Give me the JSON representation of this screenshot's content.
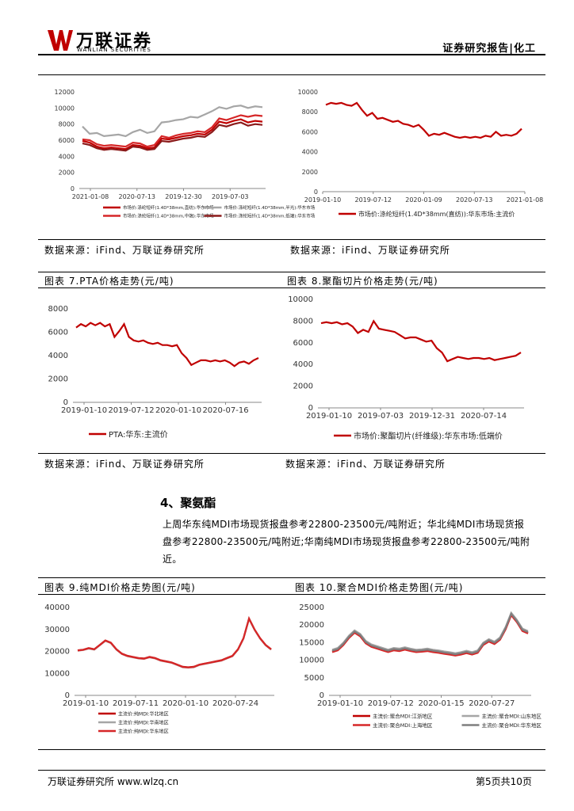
{
  "header": {
    "brand_cn": "万联证券",
    "brand_en": "WANLIAN SECURITIES",
    "report_type": "证券研究报告|化工"
  },
  "source_note": "数据来源：iFind、万联证券研究所",
  "charts": [
    {
      "id": "c5",
      "title": "",
      "chart_data": {
        "type": "line",
        "x_ticks": [
          "2021-01-08",
          "2020-07-13",
          "2019-12-30",
          "2019-07-03"
        ],
        "y_ticks": [
          0,
          2000,
          4000,
          6000,
          8000,
          10000,
          12000
        ],
        "ylim": [
          0,
          12000
        ],
        "series": [
          {
            "name": "市场价(主流价):涤纶短纤(1.4D*38mm,直纺)",
            "color": "#c00000",
            "values": [
              5900,
              5700,
              5200,
              5000,
              5100,
              5000,
              4900,
              5400,
              5300,
              5000,
              5100,
              6200,
              6100,
              6300,
              6500,
              6600,
              6800,
              6700,
              7300,
              8300,
              8100,
              8400,
              8600,
              8200,
              8400,
              8300
            ]
          },
          {
            "name": "市场价(主流价):涤纶短纤(1.4D*38mm,半光)",
            "color": "#a6a6a6",
            "values": [
              7700,
              6800,
              6900,
              6500,
              6600,
              6700,
              6500,
              7000,
              7300,
              6900,
              7100,
              8200,
              8300,
              8500,
              8600,
              8900,
              8800,
              9200,
              9600,
              10100,
              9900,
              10200,
              10300,
              10000,
              10200,
              10100
            ]
          },
          {
            "name": "市场价(主流价):涤纶短纤(1.4D*38mm,中端)",
            "color": "#d62728",
            "values": [
              6100,
              6000,
              5500,
              5300,
              5400,
              5300,
              5200,
              5700,
              5600,
              5200,
              5400,
              6500,
              6300,
              6600,
              6800,
              6900,
              7100,
              7000,
              7600,
              8700,
              8500,
              8800,
              9100,
              8900,
              9100,
              9000
            ]
          },
          {
            "name": "市场价(主流价):涤纶短纤(1.4D*38mm,低端)",
            "color": "#8b1a1a",
            "values": [
              5600,
              5400,
              5000,
              4800,
              4900,
              4800,
              4700,
              5200,
              5100,
              4800,
              4900,
              5900,
              5800,
              6000,
              6200,
              6300,
              6500,
              6400,
              7000,
              7900,
              7700,
              8000,
              8200,
              7800,
              8000,
              7900
            ]
          }
        ]
      },
      "legend": [
        "市场价:涤纶短纤(1.4D*38mm,直纺):华东市场",
        "市场价:涤纶短纤(1.4D*38mm,半光):华东市场",
        "市场价:涤纶短纤(1.4D*38mm,中端):华东市场",
        "市场价:涤纶短纤(1.4D*38mm,低端):华东市场"
      ]
    },
    {
      "id": "c6",
      "title": "",
      "chart_data": {
        "type": "line",
        "x_ticks": [
          "2019-01-10",
          "2019-07-12",
          "2020-01-09",
          "2020-07-13",
          "2021-01-08"
        ],
        "y_ticks": [
          0,
          2000,
          4000,
          6000,
          8000,
          10000
        ],
        "ylim": [
          0,
          10000
        ],
        "series": [
          {
            "name": "市场价:涤纶短纤(1.4D*38mm(直纺)):华东市场:主流价",
            "color": "#c00000",
            "values": [
              8700,
              8900,
              8800,
              8900,
              8700,
              8600,
              8900,
              8200,
              7600,
              7900,
              7300,
              7400,
              7200,
              7000,
              7100,
              6800,
              6700,
              6500,
              6700,
              6200,
              5600,
              5800,
              5700,
              5900,
              5700,
              5500,
              5400,
              5500,
              5400,
              5500,
              5400,
              5600,
              5500,
              6000,
              5600,
              5700,
              5600,
              5800,
              6300
            ]
          }
        ]
      },
      "legend": [
        "市场价:涤纶短纤(1.4D*38mm(直纺)):华东市场:主流价"
      ]
    },
    {
      "id": "c7",
      "title": "图表 7.PTA价格走势(元/吨)",
      "chart_data": {
        "type": "line",
        "x_ticks": [
          "2019-01-10",
          "2019-07-12",
          "2020-01-10",
          "2020-07-16"
        ],
        "y_ticks": [
          0,
          2000,
          4000,
          6000,
          8000
        ],
        "ylim": [
          0,
          8000
        ],
        "series": [
          {
            "name": "PTA:华东:主流价",
            "color": "#c00000",
            "values": [
              6400,
              6700,
              6500,
              6800,
              6600,
              6800,
              6500,
              6700,
              5600,
              6100,
              6700,
              5600,
              5300,
              5200,
              5300,
              5100,
              5000,
              5100,
              4900,
              4900,
              4800,
              4900,
              4200,
              3800,
              3200,
              3400,
              3600,
              3600,
              3500,
              3600,
              3500,
              3600,
              3400,
              3100,
              3400,
              3500,
              3300,
              3600,
              3800
            ]
          }
        ]
      },
      "legend": [
        "PTA:华东:主流价"
      ]
    },
    {
      "id": "c8",
      "title": "图表 8.聚酯切片价格走势(元/吨)",
      "chart_data": {
        "type": "line",
        "x_ticks": [
          "2019-01-10",
          "2019-07-03",
          "2019-12-31",
          "2020-07-14"
        ],
        "y_ticks": [
          0,
          2000,
          4000,
          6000,
          8000,
          10000
        ],
        "ylim": [
          0,
          10000
        ],
        "series": [
          {
            "name": "市场价:聚酯切片(纤维级):华东市场:低端价",
            "color": "#c00000",
            "values": [
              7800,
              7900,
              7800,
              7900,
              7700,
              7800,
              7500,
              6900,
              7200,
              7000,
              8000,
              7300,
              7200,
              7100,
              7000,
              6700,
              6400,
              6500,
              6500,
              6300,
              6100,
              6200,
              5500,
              5100,
              4300,
              4500,
              4700,
              4600,
              4500,
              4600,
              4600,
              4500,
              4600,
              4400,
              4500,
              4600,
              4700,
              4800,
              5100
            ]
          }
        ]
      },
      "legend": [
        "市场价:聚酯切片(纤维级):华东市场:低端价"
      ]
    },
    {
      "id": "c9",
      "title": "图表 9.纯MDI价格走势图(元/吨)",
      "chart_data": {
        "type": "line",
        "x_ticks": [
          "2019-01-10",
          "2019-07-11",
          "2020-01-10",
          "2020-07-24"
        ],
        "y_ticks": [
          0,
          10000,
          20000,
          30000,
          40000
        ],
        "ylim": [
          0,
          40000
        ],
        "series": [
          {
            "name": "主流价:纯MDI:华北地区",
            "color": "#c00000",
            "values": [
              20500,
              20800,
              21500,
              21000,
              23000,
              25000,
              24000,
              21000,
              19000,
              18000,
              17500,
              17000,
              16800,
              17500,
              17000,
              16000,
              15500,
              15000,
              14000,
              13000,
              12800,
              13000,
              14000,
              14500,
              15000,
              15500,
              16000,
              17000,
              18000,
              21000,
              26000,
              35000,
              30000,
              26000,
              23000,
              21000
            ]
          },
          {
            "name": "主流价:纯MDI:华南地区",
            "color": "#a6a6a6",
            "values": [
              20300,
              20600,
              21300,
              20800,
              22800,
              24800,
              23800,
              20800,
              18800,
              17800,
              17300,
              16800,
              16600,
              17300,
              16800,
              15800,
              15300,
              14800,
              13800,
              12800,
              12600,
              12800,
              13800,
              14300,
              14800,
              15300,
              15800,
              16800,
              17800,
              20800,
              25800,
              34800,
              29800,
              25800,
              22800,
              20800
            ]
          },
          {
            "name": "主流价:纯MDI:华东地区",
            "color": "#d62728",
            "values": [
              20400,
              20700,
              21400,
              20900,
              22900,
              24900,
              23900,
              20900,
              18900,
              17900,
              17400,
              16900,
              16700,
              17400,
              16900,
              15900,
              15400,
              14900,
              13900,
              12900,
              12700,
              12900,
              13900,
              14400,
              14900,
              15400,
              15900,
              16900,
              17900,
              20900,
              25900,
              34900,
              29900,
              25900,
              22900,
              20900
            ]
          }
        ]
      },
      "legend": [
        "主流价:纯MDI:华北地区",
        "主流价:纯MDI:华南地区",
        "主流价:纯MDI:华东地区"
      ]
    },
    {
      "id": "c10",
      "title": "图表 10.聚合MDI价格走势图(元/吨)",
      "chart_data": {
        "type": "line",
        "x_ticks": [
          "2019-01-10",
          "2019-07-12",
          "2020-01-15",
          "2020-07-27"
        ],
        "y_ticks": [
          0,
          5000,
          10000,
          15000,
          20000,
          25000
        ],
        "ylim": [
          0,
          25000
        ],
        "series": [
          {
            "name": "主流价:聚合MDI:江浙地区",
            "color": "#c00000",
            "values": [
              12500,
              13000,
              14500,
              16500,
              18000,
              17000,
              15000,
              14000,
              13500,
              13000,
              12500,
              13000,
              12800,
              13200,
              12800,
              12500,
              12600,
              12800,
              12500,
              12300,
              12000,
              11800,
              11500,
              11800,
              12200,
              11800,
              12300,
              14500,
              15500,
              14800,
              16000,
              19000,
              23000,
              21000,
              18500,
              17800
            ]
          },
          {
            "name": "主流价:聚合MDI:山东地区",
            "color": "#a6a6a6",
            "values": [
              13000,
              13500,
              15000,
              17000,
              18500,
              17500,
              15500,
              14500,
              14000,
              13500,
              13000,
              13500,
              13300,
              13700,
              13300,
              13000,
              13100,
              13300,
              13000,
              12800,
              12500,
              12300,
              12000,
              12300,
              12700,
              12300,
              12800,
              15000,
              16000,
              15300,
              16500,
              19500,
              23500,
              21500,
              19000,
              18300
            ]
          },
          {
            "name": "主流价:聚合MDI:上海地区",
            "color": "#d62728",
            "values": [
              12300,
              12800,
              14300,
              16300,
              17800,
              16800,
              14800,
              13800,
              13300,
              12800,
              12300,
              12800,
              12600,
              13000,
              12600,
              12300,
              12400,
              12600,
              12300,
              12100,
              11800,
              11600,
              11300,
              11600,
              12000,
              11600,
              12100,
              14300,
              15300,
              14600,
              15800,
              18800,
              22800,
              20800,
              18300,
              17600
            ]
          },
          {
            "name": "主流价:聚合MDI:华东地区",
            "color": "#7f7f7f",
            "values": [
              12700,
              13200,
              14700,
              16700,
              18200,
              17200,
              15200,
              14200,
              13700,
              13200,
              12700,
              13200,
              13000,
              13400,
              13000,
              12700,
              12800,
              13000,
              12700,
              12500,
              12200,
              12000,
              11700,
              12000,
              12400,
              12000,
              12500,
              14700,
              15700,
              15000,
              16200,
              19200,
              23200,
              21200,
              18700,
              18000
            ]
          }
        ]
      },
      "legend": [
        "主流价:聚合MDI:江浙地区",
        "主流价:聚合MDI:山东地区",
        "主流价:聚合MDI:上海地区",
        "主流价:聚合MDI:华东地区"
      ]
    }
  ],
  "section4": {
    "title": "4、聚氨酯",
    "para_lines": [
      "上周华东纯MDI市场现货报盘参考22800-23500元/吨附近；华北纯MDI市场现货报",
      "盘参考22800-23500元/吨附近;华南纯MDI市场现货报盘参考22800-23500元/吨附",
      "近。"
    ]
  },
  "footer": {
    "left": "万联证券研究所 www.wlzq.cn",
    "right": "第5页共10页"
  }
}
